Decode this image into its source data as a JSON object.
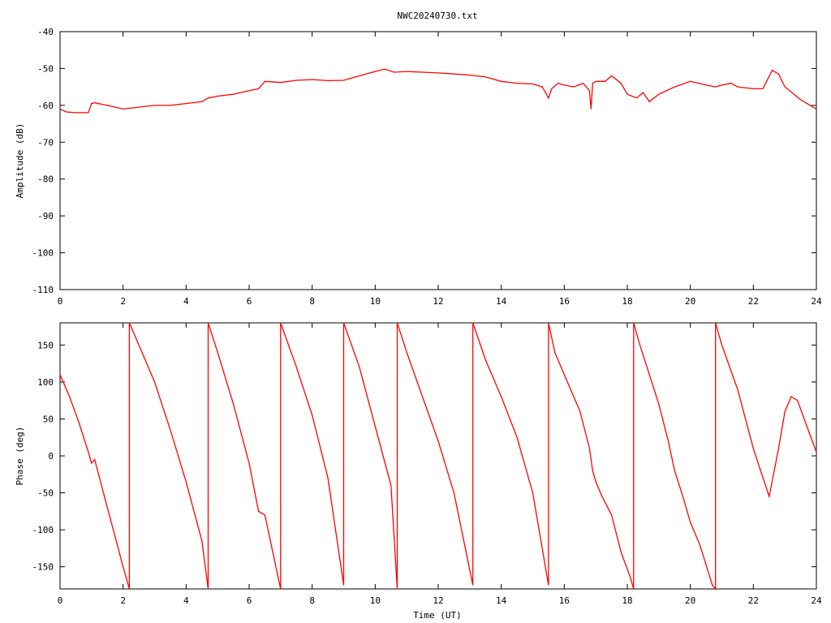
{
  "title": "NWC20240730.txt",
  "xlabel": "Time (UT)",
  "colors": {
    "series": "#ff0000",
    "axis": "#000000",
    "background": "#ffffff"
  },
  "chart_data": [
    {
      "type": "line",
      "title": "NWC20240730.txt",
      "xlabel": "",
      "ylabel": "Amplitude (dB)",
      "xlim": [
        0,
        24
      ],
      "ylim": [
        -110,
        -40
      ],
      "xticks": [
        0,
        2,
        4,
        6,
        8,
        10,
        12,
        14,
        16,
        18,
        20,
        22,
        24
      ],
      "yticks": [
        -110,
        -100,
        -90,
        -80,
        -70,
        -60,
        -50,
        -40
      ],
      "grid": false,
      "series": [
        {
          "name": "",
          "x": [
            0,
            0.2,
            0.5,
            0.9,
            1.0,
            1.1,
            1.5,
            2.0,
            2.5,
            3.0,
            3.5,
            4.0,
            4.5,
            4.7,
            5.0,
            5.5,
            6.0,
            6.3,
            6.5,
            7.0,
            7.5,
            8.0,
            8.5,
            9.0,
            9.5,
            10.0,
            10.3,
            10.6,
            11.0,
            11.5,
            12.0,
            12.5,
            13.0,
            13.5,
            14.0,
            14.5,
            15.0,
            15.3,
            15.5,
            15.6,
            15.8,
            16.0,
            16.3,
            16.6,
            16.8,
            16.85,
            16.9,
            17.0,
            17.3,
            17.5,
            17.8,
            18.0,
            18.3,
            18.5,
            18.7,
            19.0,
            19.5,
            20.0,
            20.5,
            20.8,
            21.0,
            21.3,
            21.5,
            22.0,
            22.3,
            22.6,
            22.8,
            23.0,
            23.5,
            24.0
          ],
          "y": [
            -61,
            -61.8,
            -62,
            -62,
            -59.5,
            -59.3,
            -60,
            -61,
            -60.5,
            -60,
            -60,
            -59.5,
            -59,
            -58,
            -57.5,
            -57,
            -56,
            -55.5,
            -53.5,
            -53.8,
            -53.2,
            -53,
            -53.3,
            -53.2,
            -52,
            -50.8,
            -50.2,
            -51,
            -50.8,
            -51,
            -51.2,
            -51.5,
            -51.8,
            -52.3,
            -53.5,
            -54,
            -54.2,
            -55,
            -58,
            -55.5,
            -54,
            -54.5,
            -55,
            -54,
            -56,
            -61,
            -54,
            -53.5,
            -53.5,
            -52,
            -54,
            -57,
            -58,
            -56.5,
            -59,
            -57,
            -55,
            -53.5,
            -54.5,
            -55,
            -54.5,
            -54,
            -55,
            -55.5,
            -55.5,
            -50.5,
            -51.5,
            -55,
            -58.5,
            -61
          ]
        }
      ]
    },
    {
      "type": "line",
      "title": "",
      "xlabel": "Time (UT)",
      "ylabel": "Phase (deg)",
      "xlim": [
        0,
        24
      ],
      "ylim": [
        -180,
        180
      ],
      "xticks": [
        0,
        2,
        4,
        6,
        8,
        10,
        12,
        14,
        16,
        18,
        20,
        22,
        24
      ],
      "yticks": [
        -150,
        -100,
        -50,
        0,
        50,
        100,
        150
      ],
      "grid": false,
      "series": [
        {
          "name": "",
          "x": [
            0,
            0.3,
            0.6,
            0.9,
            1.0,
            1.1,
            1.5,
            2.0,
            2.2,
            2.2,
            2.5,
            3.0,
            3.5,
            4.0,
            4.5,
            4.7,
            4.7,
            5.0,
            5.5,
            6.0,
            6.3,
            6.5,
            7.0,
            7.0,
            7.5,
            8.0,
            8.5,
            9.0,
            9.0,
            9.5,
            10.0,
            10.5,
            10.7,
            10.7,
            11.0,
            11.5,
            12.0,
            12.5,
            13.1,
            13.1,
            13.5,
            14.0,
            14.5,
            15.0,
            15.5,
            15.5,
            15.7,
            16.0,
            16.5,
            16.8,
            16.9,
            17.0,
            17.2,
            17.5,
            17.8,
            18.1,
            18.2,
            18.2,
            18.4,
            18.7,
            19.0,
            19.3,
            19.5,
            19.8,
            20.0,
            20.3,
            20.7,
            20.8,
            20.8,
            21.0,
            21.5,
            22.0,
            22.5,
            22.8,
            23.0,
            23.2,
            23.4,
            23.7,
            24.0
          ],
          "y": [
            110,
            80,
            45,
            5,
            -10,
            -5,
            -70,
            -150,
            -180,
            180,
            150,
            100,
            35,
            -35,
            -115,
            -180,
            180,
            140,
            70,
            -10,
            -75,
            -80,
            -180,
            180,
            120,
            55,
            -30,
            -175,
            180,
            120,
            40,
            -40,
            -180,
            180,
            140,
            80,
            20,
            -50,
            -175,
            180,
            130,
            80,
            25,
            -50,
            -175,
            180,
            140,
            110,
            60,
            10,
            -20,
            -35,
            -55,
            -80,
            -130,
            -165,
            -180,
            180,
            150,
            110,
            70,
            20,
            -20,
            -60,
            -90,
            -120,
            -175,
            -180,
            180,
            150,
            90,
            10,
            -55,
            10,
            60,
            80,
            75,
            40,
            5
          ]
        }
      ]
    }
  ]
}
